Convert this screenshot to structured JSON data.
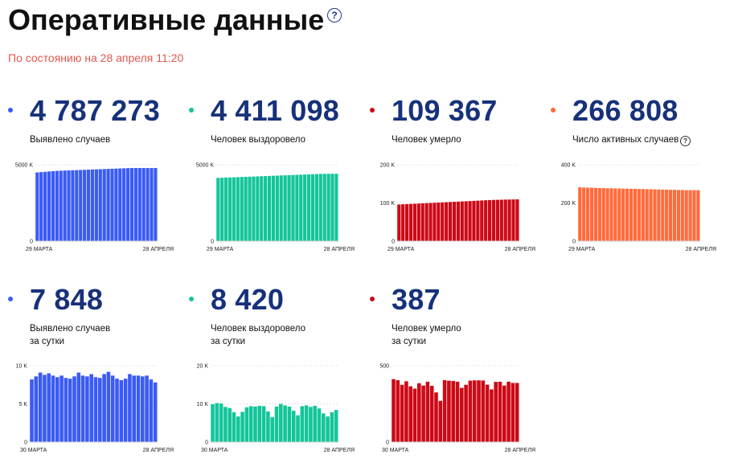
{
  "header": {
    "title": "Оперативные данные",
    "help": "?",
    "date": "По состоянию на 28 апреля 11:20"
  },
  "cards": [
    {
      "value": "4 787 273",
      "label": [
        "Выявлено случаев"
      ],
      "color": "#3b5bf5"
    },
    {
      "value": "4 411 098",
      "label": [
        "Человек выздоровело"
      ],
      "color": "#14c59a"
    },
    {
      "value": "109 367",
      "label": [
        "Человек умерло"
      ],
      "color": "#cc0a17"
    },
    {
      "value": "266 808",
      "label": [
        "Число активных случаев"
      ],
      "color": "#ff6b3d",
      "help": "?"
    },
    {
      "value": "7 848",
      "label": [
        "Выявлено случаев",
        "за сутки"
      ],
      "color": "#3b5bf5"
    },
    {
      "value": "8 420",
      "label": [
        "Человек выздоровело",
        "за сутки"
      ],
      "color": "#14c59a"
    },
    {
      "value": "387",
      "label": [
        "Человек умерло",
        "за сутки"
      ],
      "color": "#cc0a17"
    }
  ],
  "chart_data": [
    {
      "type": "bar",
      "color": "#3b5bf5",
      "ylim": [
        0,
        5000
      ],
      "yticks": [
        {
          "v": 0,
          "t": "0"
        },
        {
          "v": 5000,
          "t": "5000 K"
        }
      ],
      "xlabels": [
        "29 МАРТА",
        "28 АПРЕЛЯ"
      ],
      "values": [
        4500,
        4520,
        4540,
        4560,
        4580,
        4600,
        4610,
        4620,
        4630,
        4640,
        4650,
        4660,
        4670,
        4680,
        4690,
        4700,
        4710,
        4720,
        4730,
        4740,
        4750,
        4760,
        4770,
        4780,
        4787,
        4787,
        4787,
        4787,
        4787,
        4787,
        4787
      ]
    },
    {
      "type": "bar",
      "color": "#14c59a",
      "ylim": [
        0,
        5000
      ],
      "yticks": [
        {
          "v": 0,
          "t": "0"
        },
        {
          "v": 5000,
          "t": "5000 K"
        }
      ],
      "xlabels": [
        "29 МАРТА",
        "28 АПРЕЛЯ"
      ],
      "values": [
        4140,
        4150,
        4160,
        4170,
        4180,
        4190,
        4200,
        4210,
        4220,
        4230,
        4240,
        4250,
        4260,
        4270,
        4280,
        4290,
        4300,
        4310,
        4320,
        4330,
        4340,
        4350,
        4360,
        4370,
        4380,
        4390,
        4400,
        4405,
        4408,
        4410,
        4411
      ]
    },
    {
      "type": "bar",
      "color": "#cc0a17",
      "ylim": [
        0,
        200
      ],
      "yticks": [
        {
          "v": 0,
          "t": "0"
        },
        {
          "v": 100,
          "t": "100 K"
        },
        {
          "v": 200,
          "t": "200 K"
        }
      ],
      "xlabels": [
        "29 МАРТА",
        "28 АПРЕЛЯ"
      ],
      "values": [
        96,
        96.5,
        97,
        97.5,
        98,
        98.5,
        99,
        99.5,
        100,
        100.5,
        101,
        101.5,
        102,
        102.5,
        103,
        103.5,
        104,
        104.5,
        105,
        105.5,
        106,
        106.5,
        107,
        107.5,
        108,
        108.2,
        108.5,
        108.8,
        109,
        109.2,
        109.4
      ]
    },
    {
      "type": "bar",
      "color": "#ff6b3d",
      "ylim": [
        0,
        400
      ],
      "yticks": [
        {
          "v": 0,
          "t": "0"
        },
        {
          "v": 200,
          "t": "200 K"
        },
        {
          "v": 400,
          "t": "400 K"
        }
      ],
      "xlabels": [
        "29 МАРТА",
        "28 АПРЕЛЯ"
      ],
      "values": [
        282,
        281,
        280,
        280,
        279,
        278,
        278,
        277,
        277,
        276,
        276,
        275,
        275,
        274,
        274,
        273,
        273,
        272,
        272,
        271,
        271,
        270,
        270,
        269,
        269,
        268,
        268,
        267,
        267,
        267,
        267
      ]
    },
    {
      "type": "bar",
      "color": "#3b5bf5",
      "ylim": [
        0,
        10
      ],
      "yticks": [
        {
          "v": 0,
          "t": "0"
        },
        {
          "v": 5,
          "t": "5 K"
        },
        {
          "v": 10,
          "t": "10 K"
        }
      ],
      "xlabels": [
        "30 МАРТА",
        "28 АПРЕЛЯ"
      ],
      "values": [
        8.2,
        8.6,
        9.1,
        8.8,
        9.0,
        8.7,
        8.5,
        8.7,
        8.4,
        8.3,
        8.6,
        9.1,
        8.7,
        8.6,
        8.9,
        8.5,
        8.4,
        8.9,
        9.2,
        8.7,
        8.3,
        8.1,
        8.3,
        8.9,
        8.7,
        8.7,
        8.6,
        8.7,
        8.2,
        7.8
      ]
    },
    {
      "type": "bar",
      "color": "#14c59a",
      "ylim": [
        0,
        20
      ],
      "yticks": [
        {
          "v": 0,
          "t": "0"
        },
        {
          "v": 10,
          "t": "10 K"
        },
        {
          "v": 20,
          "t": "20 K"
        }
      ],
      "xlabels": [
        "30 МАРТА",
        "28 АПРЕЛЯ"
      ],
      "values": [
        9.9,
        10.2,
        10.1,
        9.2,
        8.9,
        7.8,
        6.7,
        7.9,
        9.1,
        9.4,
        9.3,
        9.5,
        9.4,
        8.0,
        6.5,
        9.3,
        10.0,
        9.6,
        9.3,
        8.2,
        7.0,
        9.4,
        9.6,
        9.2,
        9.5,
        8.8,
        7.5,
        6.7,
        7.8,
        8.4
      ]
    },
    {
      "type": "bar",
      "color": "#cc0a17",
      "ylim": [
        0,
        500
      ],
      "yticks": [
        {
          "v": 0,
          "t": "0"
        },
        {
          "v": 500,
          "t": "500"
        }
      ],
      "xlabels": [
        "30 МАРТА",
        "28 АПРЕЛЯ"
      ],
      "values": [
        412,
        405,
        375,
        398,
        365,
        350,
        385,
        370,
        395,
        368,
        325,
        270,
        405,
        402,
        400,
        395,
        355,
        375,
        402,
        404,
        404,
        403,
        376,
        345,
        394,
        395,
        370,
        395,
        387,
        387
      ]
    }
  ]
}
